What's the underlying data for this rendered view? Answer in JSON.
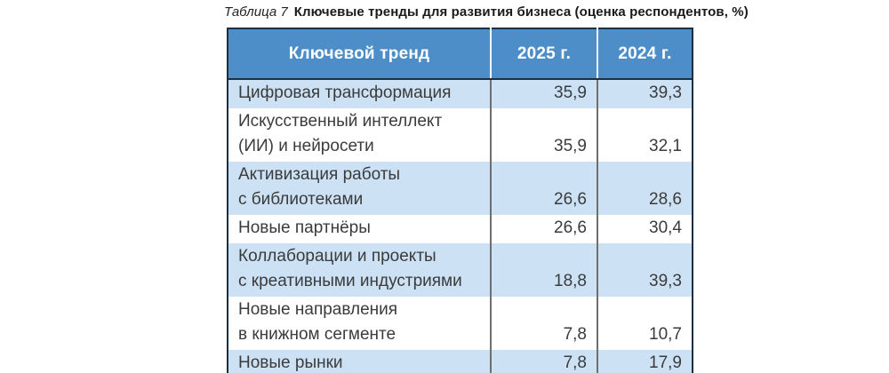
{
  "title": {
    "label": "Таблица 7",
    "text": "Ключевые тренды для развития бизнеса (оценка респондентов, %)"
  },
  "table": {
    "headers": {
      "trend": "Ключевой тренд",
      "y2025": "2025 г.",
      "y2024": "2024 г."
    },
    "rows": [
      {
        "trend": "Цифровая трансформация",
        "y2025": "35,9",
        "y2024": "39,3"
      },
      {
        "trend": "Искусственный интеллект\n(ИИ) и нейросети",
        "y2025": "35,9",
        "y2024": "32,1"
      },
      {
        "trend": "Активизация работы\nс библиотеками",
        "y2025": "26,6",
        "y2024": "28,6"
      },
      {
        "trend": "Новые партнёры",
        "y2025": "26,6",
        "y2024": "30,4"
      },
      {
        "trend": "Коллаборации и проекты\nс креативными индустриями",
        "y2025": "18,8",
        "y2024": "39,3"
      },
      {
        "trend": "Новые направления\nв книжном сегменте",
        "y2025": "7,8",
        "y2024": "10,7"
      },
      {
        "trend": "Новые рынки",
        "y2025": "7,8",
        "y2024": "17,9"
      }
    ]
  },
  "colors": {
    "header_bg": "#4d8ec8",
    "header_text": "#ffffff",
    "row_alt_bg": "#cce1f4",
    "row_plain_bg": "#ffffff",
    "outer_border": "#1c2f42",
    "body_separator": "#6e6e6e",
    "body_text": "#3b3b3b"
  },
  "chart_data": {
    "type": "table",
    "title": "Ключевые тренды для развития бизнеса (оценка респондентов, %)",
    "caption_label": "Таблица 7",
    "columns": [
      "Ключевой тренд",
      "2025 г.",
      "2024 г."
    ],
    "categories": [
      "Цифровая трансформация",
      "Искусственный интеллект (ИИ) и нейросети",
      "Активизация работы с библиотеками",
      "Новые партнёры",
      "Коллаборации и проекты с креативными индустриями",
      "Новые направления в книжном сегменте",
      "Новые рынки"
    ],
    "series": [
      {
        "name": "2025 г.",
        "values": [
          35.9,
          35.9,
          26.6,
          26.6,
          18.8,
          7.8,
          7.8
        ]
      },
      {
        "name": "2024 г.",
        "values": [
          39.3,
          32.1,
          28.6,
          30.4,
          39.3,
          10.7,
          17.9
        ]
      }
    ],
    "units": "%",
    "decimal_separator": ","
  }
}
